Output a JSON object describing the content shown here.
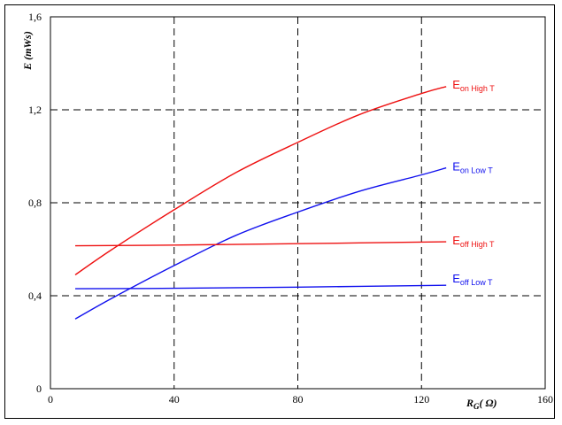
{
  "chart_data": {
    "type": "line",
    "xlabel_main": "R",
    "xlabel_sub": "G",
    "xlabel_unit": "( Ω)",
    "ylabel": "E (mWs)",
    "xlim": [
      0,
      160
    ],
    "ylim": [
      0,
      1.6
    ],
    "x_ticks": [
      "0",
      "40",
      "80",
      "120",
      "160"
    ],
    "y_ticks": [
      "0",
      "0,4",
      "0,8",
      "1,2",
      "1,6"
    ],
    "grid": "dashed",
    "series": [
      {
        "main": "E",
        "sub": "on High T",
        "color": "#ee1111",
        "x": [
          8,
          20,
          40,
          60,
          80,
          100,
          120,
          128
        ],
        "y": [
          0.49,
          0.6,
          0.77,
          0.93,
          1.06,
          1.18,
          1.27,
          1.3
        ]
      },
      {
        "main": "E",
        "sub": "on Low T",
        "color": "#1111ee",
        "x": [
          8,
          20,
          40,
          60,
          80,
          100,
          120,
          128
        ],
        "y": [
          0.3,
          0.39,
          0.53,
          0.66,
          0.76,
          0.85,
          0.92,
          0.95
        ]
      },
      {
        "main": "E",
        "sub": "off High T",
        "color": "#ee1111",
        "x": [
          8,
          40,
          80,
          128
        ],
        "y": [
          0.615,
          0.618,
          0.624,
          0.632
        ]
      },
      {
        "main": "E",
        "sub": "off Low T",
        "color": "#1111ee",
        "x": [
          8,
          40,
          80,
          128
        ],
        "y": [
          0.43,
          0.432,
          0.437,
          0.445
        ]
      }
    ]
  }
}
